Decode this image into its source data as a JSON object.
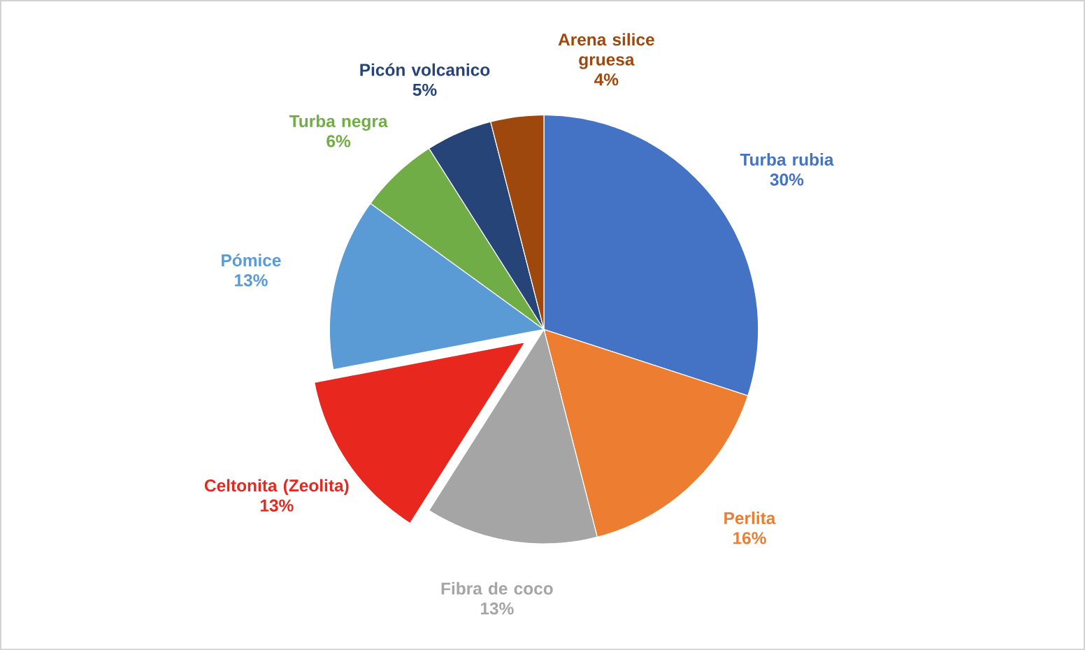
{
  "chart_data": {
    "type": "pie",
    "categories": [
      "Turba rubia",
      "Perlita",
      "Fibra de coco",
      "Celtonita (Zeolita)",
      "Pómice",
      "Turba negra",
      "Picón volcanico",
      "Arena silice gruesa"
    ],
    "values": [
      30,
      16,
      13,
      13,
      13,
      6,
      5,
      4
    ],
    "value_labels": [
      "30%",
      "16%",
      "13%",
      "13%",
      "13%",
      "6%",
      "5%",
      "4%"
    ],
    "colors": [
      "#4472c4",
      "#ed7d31",
      "#a5a5a5",
      "#e8281e",
      "#5b9bd5",
      "#70ad47",
      "#264478",
      "#9e480e"
    ]
  }
}
